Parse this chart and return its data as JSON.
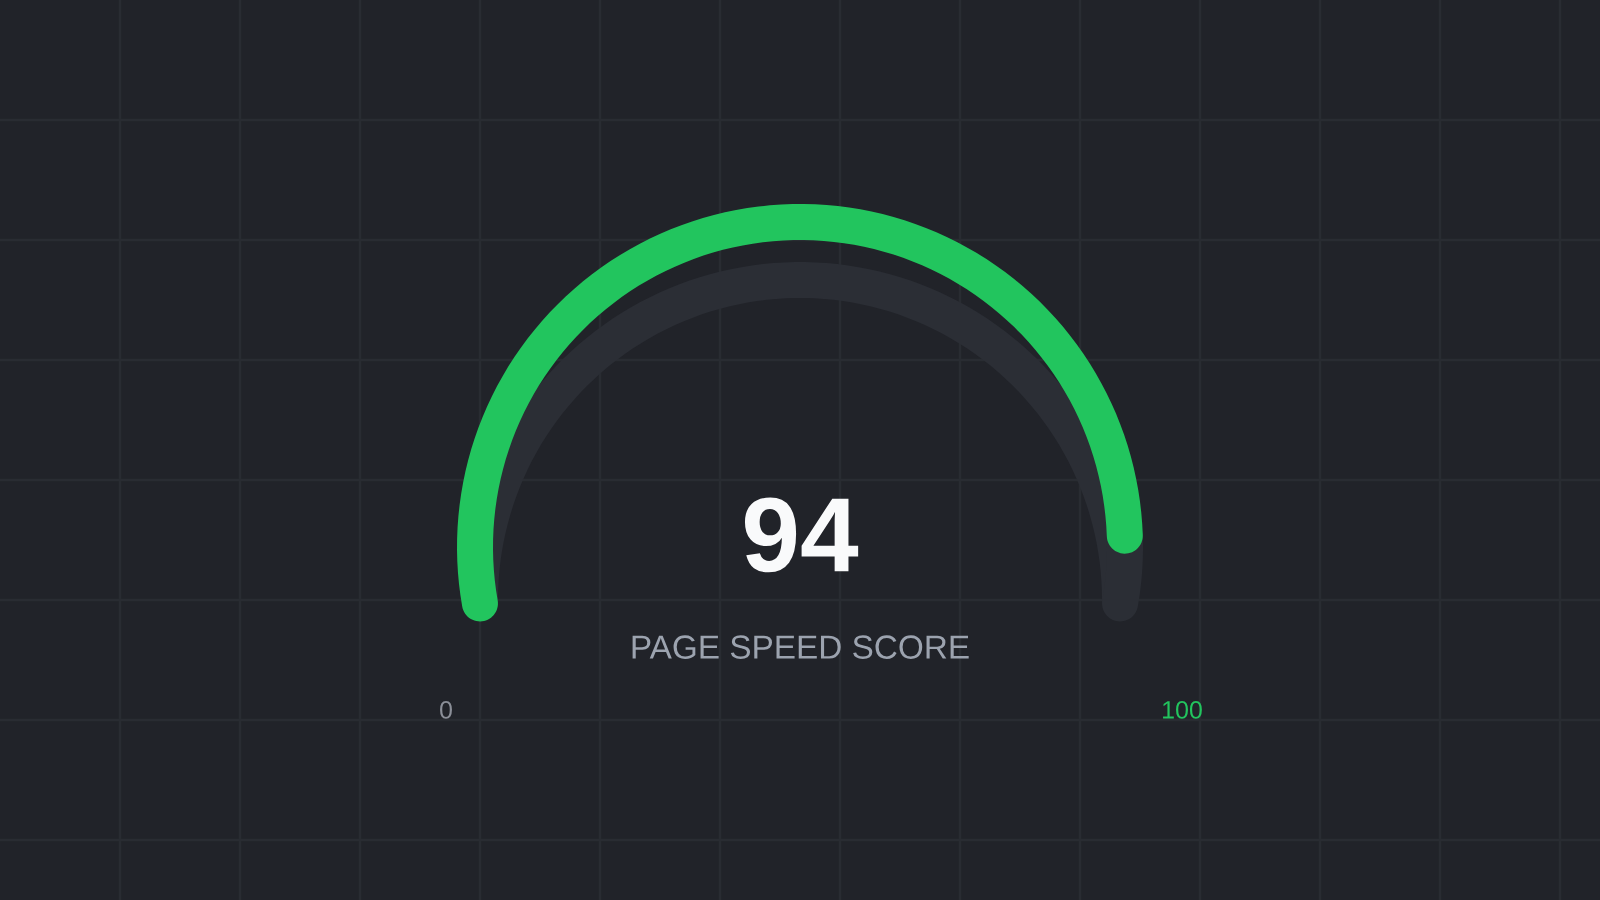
{
  "chart_data": {
    "type": "other",
    "values": [
      94
    ],
    "colors": [
      "#22c55e"
    ],
    "value_labels": [
      "94"
    ],
    "annotations": [
      "PAGE SPEED SCORE",
      "0",
      "100"
    ]
  }
}
